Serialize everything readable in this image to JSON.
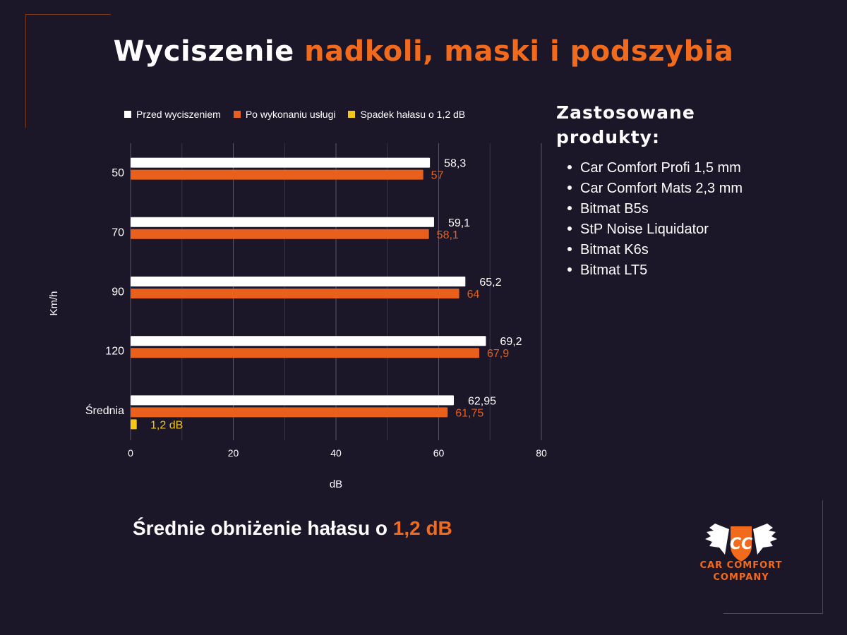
{
  "title": {
    "part1": "Wyciszenie",
    "part2": "nadkoli, maski i podszybia"
  },
  "colors": {
    "before": "#ffffff",
    "after": "#e8601c",
    "drop": "#f5c518",
    "accent": "#f26a1b",
    "background": "#1b1628"
  },
  "chart_data": {
    "type": "bar",
    "orientation": "horizontal",
    "categories": [
      "50",
      "70",
      "90",
      "120",
      "Średnia"
    ],
    "series": [
      {
        "name": "Przed wyciszeniem",
        "values": [
          58.3,
          59.1,
          65.2,
          69.2,
          62.95
        ],
        "labels": [
          "58,3",
          "59,1",
          "65,2",
          "69,2",
          "62,95"
        ]
      },
      {
        "name": "Po wykonaniu usługi",
        "values": [
          57,
          58.1,
          64,
          67.9,
          61.75
        ],
        "labels": [
          "57",
          "58,1",
          "64",
          "67,9",
          "61,75"
        ]
      },
      {
        "name": "Spadek hałasu o 1,2 dB",
        "values": [
          null,
          null,
          null,
          null,
          1.2
        ],
        "labels": [
          "",
          "",
          "",
          "",
          "1,2 dB"
        ]
      }
    ],
    "xlabel": "dB",
    "ylabel": "Km/h",
    "xlim": [
      0,
      80
    ],
    "xticks": [
      "0",
      "20",
      "40",
      "60",
      "80"
    ],
    "grid": true,
    "legend_position": "top"
  },
  "products": {
    "heading": "Zastosowane produkty:",
    "items": [
      "Car Comfort Profi 1,5 mm",
      "Car Comfort Mats 2,3 mm",
      "Bitmat B5s",
      "StP Noise Liquidator",
      "Bitmat K6s",
      "Bitmat LT5"
    ]
  },
  "summary": {
    "text": "Średnie obniżenie hałasu o",
    "value": "1,2 dB"
  },
  "logo": {
    "monogram": "CC",
    "line1": "CAR COMFORT",
    "line2": "COMPANY"
  }
}
